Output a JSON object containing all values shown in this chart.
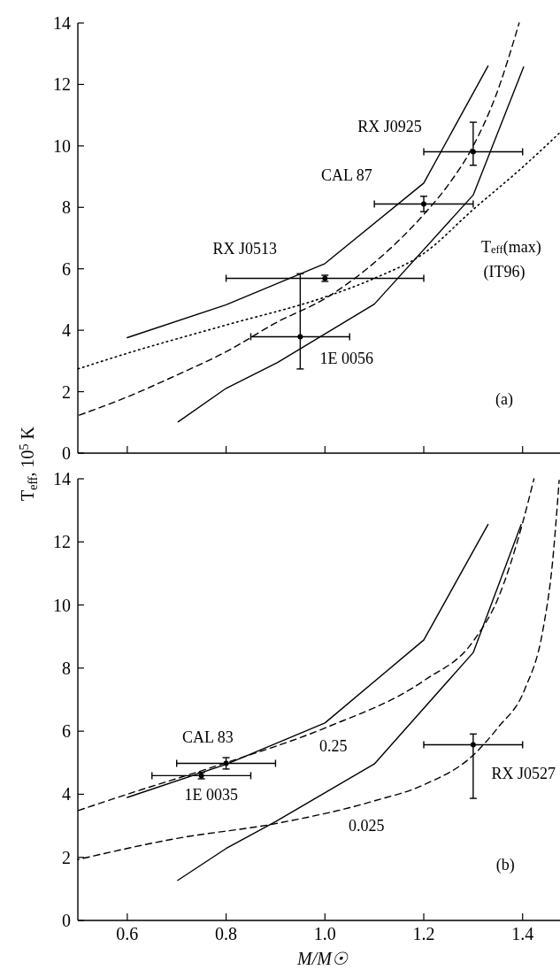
{
  "chart_data": [
    {
      "type": "line",
      "xlim": [
        0.5,
        1.49
      ],
      "ylim": [
        0,
        14
      ],
      "xticks": [
        0.6,
        0.8,
        1,
        1.2,
        1.4
      ],
      "yticks": [
        0,
        2,
        4,
        6,
        8,
        10,
        12,
        14
      ],
      "tick_labels": "y",
      "ylabel": "T$_{eff}$, 10$^{5}$ K",
      "series": [
        {
          "type": "line",
          "color": "#000000",
          "line_style": "solid",
          "x": [
            0.6,
            0.8,
            1.0,
            1.2,
            1.33
          ],
          "values": [
            3.76,
            4.83,
            6.17,
            8.79,
            12.6
          ]
        },
        {
          "type": "line",
          "color": "#000000",
          "line_style": "solid",
          "x": [
            0.703,
            0.8,
            0.904,
            1.1,
            1.3,
            1.402
          ],
          "values": [
            1.02,
            2.11,
            2.95,
            4.85,
            8.4,
            12.57
          ]
        },
        {
          "type": "line",
          "color": "#000000",
          "line_style": "dashed",
          "x": [
            0.5,
            0.6,
            0.7,
            0.8,
            0.904,
            1.0,
            1.1,
            1.2,
            1.25,
            1.3,
            1.345,
            1.393
          ],
          "values": [
            1.22,
            1.83,
            2.54,
            3.3,
            4.27,
            5.03,
            6.2,
            7.77,
            8.74,
            10.0,
            11.6,
            14.0
          ]
        },
        {
          "type": "line",
          "color": "#000000",
          "line_style": "dotted",
          "x": [
            0.5,
            0.6,
            0.8,
            1.0,
            1.1,
            1.2,
            1.3,
            1.396,
            1.48
          ],
          "values": [
            2.74,
            3.25,
            4.17,
            5.08,
            5.69,
            6.5,
            7.93,
            9.25,
            10.5
          ]
        },
        {
          "type": "scatter",
          "color": "#000000",
          "marker": "circle",
          "x": [
            1.3,
            1.2,
            1.0,
            0.95
          ],
          "values": [
            9.81,
            8.11,
            5.69,
            3.79
          ],
          "errors": [
            [
              9.37,
              10.77
            ],
            0.25,
            0.1,
            [
              2.74,
              5.84
            ]
          ],
          "xerrors": [
            0.1,
            0.1,
            0.2,
            0.1
          ]
        }
      ],
      "annotations": [
        "RX J0925",
        "CAL 87",
        "RX J0513",
        "1E 0056",
        "T$_{eff}$(max)",
        "(IT96)",
        "(a)"
      ]
    },
    {
      "type": "line",
      "xlim": [
        0.5,
        1.49
      ],
      "ylim": [
        0,
        14
      ],
      "xticks": [
        0.6,
        0.8,
        {
          "value": 1.0,
          "label": "1.0"
        },
        1.2,
        1.4
      ],
      "yticks": [
        0,
        2,
        4,
        6,
        8,
        10,
        12,
        14
      ],
      "xlabel": "M/M☉",
      "series": [
        {
          "type": "line",
          "color": "#000000",
          "line_style": "solid",
          "x": [
            0.6,
            0.8,
            1.0,
            1.2,
            1.33
          ],
          "values": [
            3.9,
            4.95,
            6.26,
            8.89,
            12.55
          ]
        },
        {
          "type": "line",
          "color": "#000000",
          "line_style": "solid",
          "x": [
            0.702,
            0.8,
            0.9,
            1.1,
            1.3,
            1.397
          ],
          "values": [
            1.27,
            2.28,
            3.13,
            4.96,
            8.49,
            12.55
          ]
        },
        {
          "type": "line",
          "color": "#000000",
          "line_style": "dashed",
          "x": [
            0.5,
            0.6,
            0.8,
            1.0,
            1.2,
            1.3,
            1.35,
            1.4,
            1.423
          ],
          "values": [
            3.48,
            4.0,
            5.0,
            6.1,
            7.6,
            8.85,
            10.2,
            12.6,
            14.0
          ]
        },
        {
          "type": "line",
          "color": "#000000",
          "line_style": "dashed",
          "x": [
            0.5,
            0.7,
            0.9,
            1.1,
            1.2,
            1.3,
            1.35,
            1.405,
            1.441,
            1.46,
            1.474
          ],
          "values": [
            1.93,
            2.6,
            3.07,
            3.79,
            4.3,
            5.24,
            6.11,
            7.35,
            9.2,
            11.27,
            13.95
          ]
        },
        {
          "type": "scatter",
          "color": "#000000",
          "marker": "circle",
          "x": [
            0.8,
            0.75,
            1.3
          ],
          "values": [
            4.98,
            4.59,
            5.57
          ],
          "errors": [
            0.18,
            0.1,
            [
              3.87,
              5.91
            ]
          ],
          "xerrors": [
            0.1,
            0.1,
            0.1
          ]
        }
      ],
      "annotations": [
        "CAL 83",
        "1E 0035",
        "0.25",
        "0.025",
        "RX J0527",
        "(b)"
      ]
    }
  ]
}
